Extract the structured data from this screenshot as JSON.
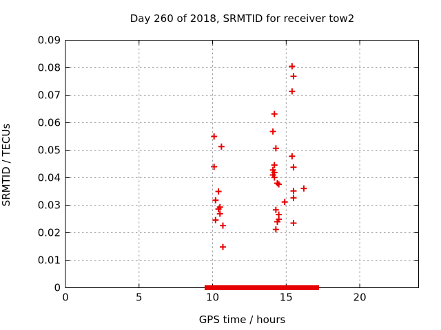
{
  "chart_data": {
    "type": "scatter",
    "title": "Day 260 of 2018, SRMTID for receiver tow2",
    "xlabel": "GPS time / hours",
    "ylabel": "SRMTID / TECUs",
    "xlim": [
      0,
      24
    ],
    "ylim": [
      0,
      0.09
    ],
    "grid": true,
    "xticks": [
      {
        "v": 0,
        "label": "0"
      },
      {
        "v": 5,
        "label": "5"
      },
      {
        "v": 10,
        "label": "10"
      },
      {
        "v": 15,
        "label": "15"
      },
      {
        "v": 20,
        "label": "20"
      }
    ],
    "yticks": [
      {
        "v": 0.0,
        "label": "0"
      },
      {
        "v": 0.01,
        "label": "0.01"
      },
      {
        "v": 0.02,
        "label": "0.02"
      },
      {
        "v": 0.03,
        "label": "0.03"
      },
      {
        "v": 0.04,
        "label": "0.04"
      },
      {
        "v": 0.05,
        "label": "0.05"
      },
      {
        "v": 0.06,
        "label": "0.06"
      },
      {
        "v": 0.07,
        "label": "0.07"
      },
      {
        "v": 0.08,
        "label": "0.08"
      },
      {
        "v": 0.09,
        "label": "0.09"
      }
    ],
    "marker": "plus",
    "marker_color": "#e60000",
    "grid_color": "#9b9b9b",
    "axis_color": "#000000",
    "series": [
      {
        "name": "SRMTID",
        "points": [
          [
            10.1,
            0.055
          ],
          [
            10.6,
            0.0513
          ],
          [
            10.1,
            0.044
          ],
          [
            10.4,
            0.035
          ],
          [
            10.2,
            0.0318
          ],
          [
            10.5,
            0.0293
          ],
          [
            10.4,
            0.0286
          ],
          [
            10.5,
            0.0269
          ],
          [
            10.2,
            0.0246
          ],
          [
            10.7,
            0.0226
          ],
          [
            10.7,
            0.0148
          ],
          [
            14.2,
            0.0632
          ],
          [
            14.1,
            0.0568
          ],
          [
            14.3,
            0.0507
          ],
          [
            14.2,
            0.0446
          ],
          [
            14.1,
            0.0428
          ],
          [
            14.2,
            0.0419
          ],
          [
            14.1,
            0.041
          ],
          [
            14.2,
            0.0401
          ],
          [
            14.4,
            0.038
          ],
          [
            14.5,
            0.0376
          ],
          [
            14.9,
            0.0312
          ],
          [
            14.3,
            0.0283
          ],
          [
            14.5,
            0.0266
          ],
          [
            14.5,
            0.0249
          ],
          [
            14.4,
            0.024
          ],
          [
            14.3,
            0.0212
          ],
          [
            15.4,
            0.0805
          ],
          [
            15.5,
            0.0769
          ],
          [
            15.4,
            0.0714
          ],
          [
            15.4,
            0.0478
          ],
          [
            15.5,
            0.0438
          ],
          [
            15.5,
            0.0352
          ],
          [
            15.5,
            0.0327
          ],
          [
            15.5,
            0.0235
          ],
          [
            16.2,
            0.0361
          ]
        ]
      }
    ],
    "baseline_segments": [
      [
        9.55,
        10.2
      ],
      [
        10.35,
        12.65
      ],
      [
        12.76,
        14.65
      ],
      [
        14.78,
        16.2
      ],
      [
        16.33,
        17.14
      ]
    ]
  }
}
